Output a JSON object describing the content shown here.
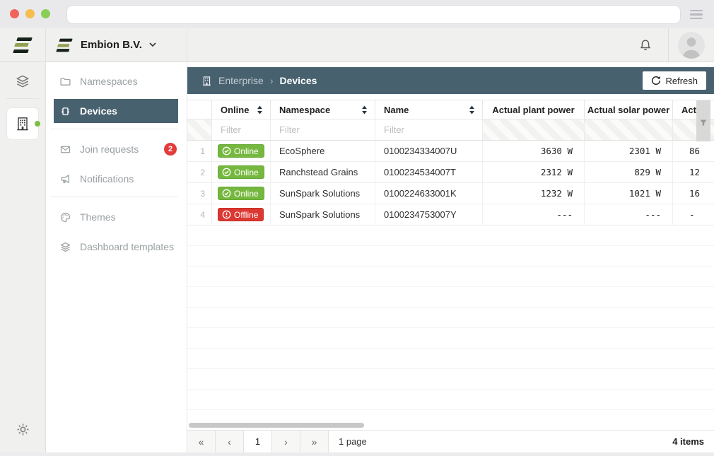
{
  "header": {
    "org": "Embion B.V."
  },
  "sidebar": {
    "items": [
      {
        "label": "Namespaces"
      },
      {
        "label": "Devices"
      },
      {
        "label": "Join requests",
        "badge": "2"
      },
      {
        "label": "Notifications"
      },
      {
        "label": "Themes"
      },
      {
        "label": "Dashboard templates"
      }
    ]
  },
  "breadcrumb": {
    "root": "Enterprise",
    "separator": "›",
    "current": "Devices"
  },
  "toolbar": {
    "refresh_label": "Refresh"
  },
  "table": {
    "filter_placeholder": "Filter",
    "columns": [
      {
        "label": "Online"
      },
      {
        "label": "Namespace"
      },
      {
        "label": "Name"
      },
      {
        "label": "Actual plant power"
      },
      {
        "label": "Actual solar power"
      },
      {
        "label": "Actu"
      }
    ],
    "rows": [
      {
        "num": "1",
        "status": "Online",
        "namespace": "EcoSphere",
        "name": "0100234334007U",
        "plant_power": "3630 W",
        "solar_power": "2301 W",
        "clipped": "86"
      },
      {
        "num": "2",
        "status": "Online",
        "namespace": "Ranchstead Grains",
        "name": "0100234534007T",
        "plant_power": "2312 W",
        "solar_power": "829 W",
        "clipped": "12"
      },
      {
        "num": "3",
        "status": "Online",
        "namespace": "SunSpark Solutions",
        "name": "0100224633001K",
        "plant_power": "1232 W",
        "solar_power": "1021 W",
        "clipped": "16"
      },
      {
        "num": "4",
        "status": "Offline",
        "namespace": "SunSpark Solutions",
        "name": "0100234753007Y",
        "plant_power": "---",
        "solar_power": "---",
        "clipped": "-"
      }
    ]
  },
  "pagination": {
    "first": "«",
    "prev": "‹",
    "page": "1",
    "next": "›",
    "last": "»",
    "pages_label": "1 page",
    "items_label": "4 items"
  },
  "colors": {
    "accent_dark": "#48616F",
    "online": "#76B83F",
    "offline": "#DC3832",
    "badge_count": "#E23B3B",
    "logo_olive": "#93A04E",
    "logo_dark": "#17231A"
  }
}
